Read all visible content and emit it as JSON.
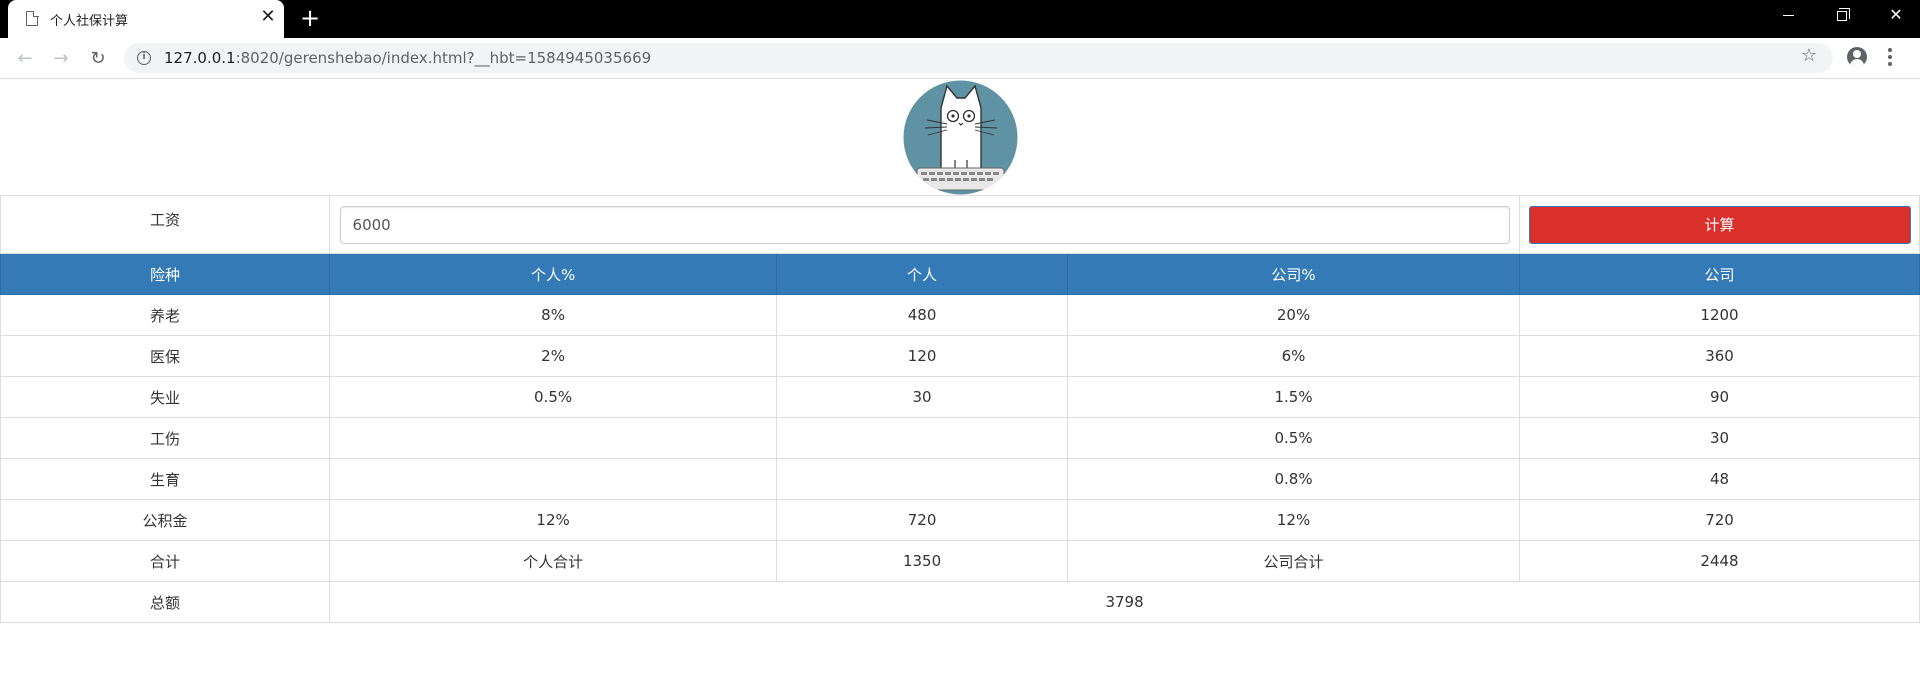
{
  "browser": {
    "tab_title": "个人社保计算",
    "tab_close": "✕",
    "new_tab": "+",
    "url_host": "127.0.0.1",
    "url_rest": ":8020/gerenshebao/index.html?__hbt=1584945035669"
  },
  "salary": {
    "label": "工资",
    "value": "6000",
    "button_label": "计算"
  },
  "table": {
    "headers": [
      "险种",
      "个人%",
      "个人",
      "公司%",
      "公司"
    ],
    "rows": [
      [
        "养老",
        "8%",
        "480",
        "20%",
        "1200"
      ],
      [
        "医保",
        "2%",
        "120",
        "6%",
        "360"
      ],
      [
        "失业",
        "0.5%",
        "30",
        "1.5%",
        "90"
      ],
      [
        "工伤",
        "",
        "",
        "0.5%",
        "30"
      ],
      [
        "生育",
        "",
        "",
        "0.8%",
        "48"
      ],
      [
        "公积金",
        "12%",
        "720",
        "12%",
        "720"
      ],
      [
        "合计",
        "个人合计",
        "1350",
        "公司合计",
        "2448"
      ]
    ],
    "total": {
      "label": "总额",
      "value": "3798"
    }
  },
  "colors": {
    "header_bg": "#337ab7",
    "button_bg": "#d9302c",
    "logo_circle": "#5f93a3"
  },
  "icons": [
    "document-icon",
    "close-icon",
    "plus-icon",
    "back-arrow-icon",
    "forward-arrow-icon",
    "reload-icon",
    "info-icon",
    "star-icon",
    "profile-icon",
    "menu-icon",
    "cat-logo"
  ]
}
